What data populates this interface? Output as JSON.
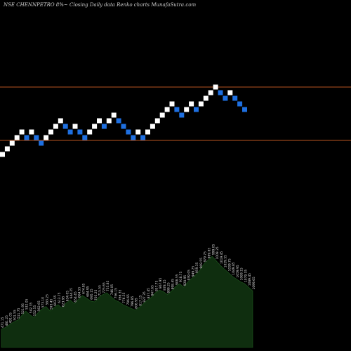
{
  "chart_data": {
    "type": "renko",
    "title": "NSE CHENNPETRO 8%~  Closing Daily data  Renko  charts MunafaSutra.com",
    "colors": {
      "background": "#000000",
      "up_brick": "#ffffff",
      "down_brick": "#1e6fe0",
      "reference_line": "#b8541f",
      "volume_fill": "#0f2e0f",
      "volume_line": "#1f5a1f"
    },
    "reference_lines": [
      660,
      565
    ],
    "bricks": [
      {
        "dir": "up",
        "value": 540
      },
      {
        "dir": "up",
        "value": 550
      },
      {
        "dir": "up",
        "value": 560
      },
      {
        "dir": "up",
        "value": 570
      },
      {
        "dir": "up",
        "value": 580
      },
      {
        "dir": "down",
        "value": 570
      },
      {
        "dir": "up",
        "value": 580
      },
      {
        "dir": "down",
        "value": 570
      },
      {
        "dir": "down",
        "value": 560
      },
      {
        "dir": "up",
        "value": 570
      },
      {
        "dir": "up",
        "value": 580
      },
      {
        "dir": "up",
        "value": 590
      },
      {
        "dir": "up",
        "value": 600
      },
      {
        "dir": "down",
        "value": 590
      },
      {
        "dir": "down",
        "value": 580
      },
      {
        "dir": "up",
        "value": 590
      },
      {
        "dir": "down",
        "value": 580
      },
      {
        "dir": "down",
        "value": 570
      },
      {
        "dir": "up",
        "value": 580
      },
      {
        "dir": "up",
        "value": 590
      },
      {
        "dir": "up",
        "value": 600
      },
      {
        "dir": "down",
        "value": 590
      },
      {
        "dir": "up",
        "value": 600
      },
      {
        "dir": "up",
        "value": 610
      },
      {
        "dir": "down",
        "value": 600
      },
      {
        "dir": "down",
        "value": 590
      },
      {
        "dir": "down",
        "value": 580
      },
      {
        "dir": "down",
        "value": 570
      },
      {
        "dir": "up",
        "value": 580
      },
      {
        "dir": "down",
        "value": 570
      },
      {
        "dir": "up",
        "value": 580
      },
      {
        "dir": "up",
        "value": 590
      },
      {
        "dir": "up",
        "value": 600
      },
      {
        "dir": "up",
        "value": 610
      },
      {
        "dir": "up",
        "value": 620
      },
      {
        "dir": "up",
        "value": 630
      },
      {
        "dir": "down",
        "value": 620
      },
      {
        "dir": "down",
        "value": 610
      },
      {
        "dir": "up",
        "value": 620
      },
      {
        "dir": "up",
        "value": 630
      },
      {
        "dir": "down",
        "value": 620
      },
      {
        "dir": "up",
        "value": 630
      },
      {
        "dir": "up",
        "value": 640
      },
      {
        "dir": "up",
        "value": 650
      },
      {
        "dir": "up",
        "value": 660
      },
      {
        "dir": "down",
        "value": 650
      },
      {
        "dir": "down",
        "value": 640
      },
      {
        "dir": "up",
        "value": 650
      },
      {
        "dir": "down",
        "value": 640
      },
      {
        "dir": "down",
        "value": 630
      },
      {
        "dir": "down",
        "value": 620
      }
    ],
    "volume_labels": [
      "471.15",
      "481.25",
      "491.05",
      "501.55",
      "511.75",
      "521.95",
      "532.05",
      "542.35",
      "552.55",
      "562.65",
      "573.10",
      "583.25",
      "593.45",
      "603.55",
      "613.75",
      "623.95",
      "634.05",
      "644.25",
      "654.45",
      "664.55",
      "674.85",
      "684.95",
      "695.15",
      "705.25",
      "715.55",
      "725.65",
      "735.85",
      "746.05",
      "756.15",
      "766.35",
      "776.55",
      "786.65",
      "796.85",
      "806.95",
      "817.15",
      "827.35",
      "837.45",
      "847.65",
      "857.75",
      "867.95",
      "878.15",
      "888.25",
      "898.45",
      "908.55",
      "918.75",
      "928.95",
      "939.05",
      "949.25",
      "959.35",
      "969.55",
      "979.75",
      "989.85",
      "999.05",
      "1009.25",
      "1019.45",
      "1029.55",
      "1039.75",
      "1049.85",
      "1059.95",
      "1069.15",
      "1079.35",
      "1089.45",
      "1099.65"
    ],
    "volume_profile": [
      0.2,
      0.22,
      0.25,
      0.28,
      0.3,
      0.35,
      0.4,
      0.36,
      0.33,
      0.38,
      0.42,
      0.45,
      0.4,
      0.44,
      0.47,
      0.43,
      0.49,
      0.52,
      0.48,
      0.53,
      0.57,
      0.54,
      0.51,
      0.5,
      0.55,
      0.58,
      0.6,
      0.56,
      0.52,
      0.5,
      0.47,
      0.45,
      0.43,
      0.41,
      0.44,
      0.48,
      0.52,
      0.55,
      0.6,
      0.63,
      0.61,
      0.58,
      0.62,
      0.67,
      0.7,
      0.66,
      0.72,
      0.76,
      0.8,
      0.85,
      0.92,
      0.96,
      1.0,
      0.95,
      0.9,
      0.86,
      0.82,
      0.78,
      0.75,
      0.72,
      0.7,
      0.66,
      0.62
    ]
  }
}
